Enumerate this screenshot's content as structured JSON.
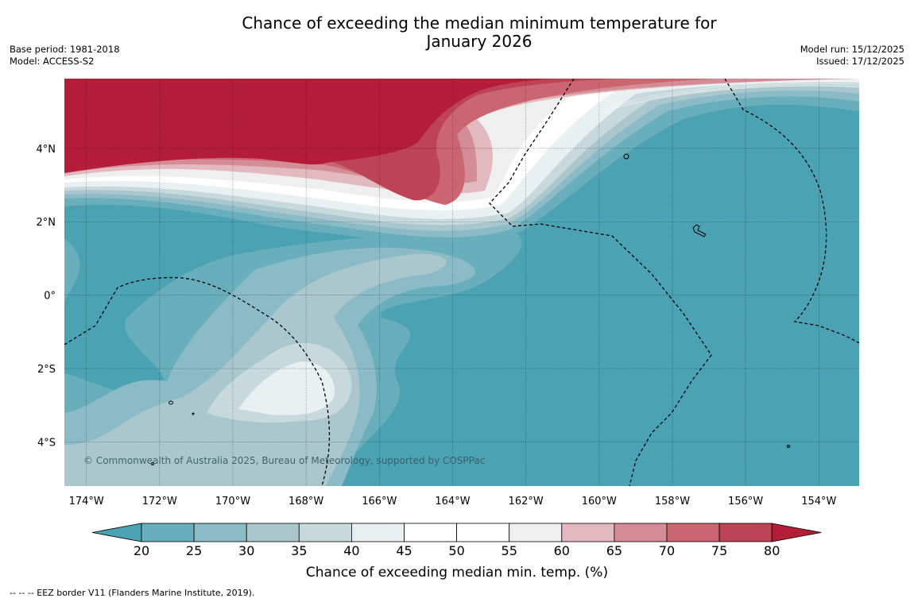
{
  "title": {
    "line1": "Chance of exceeding the median minimum temperature for",
    "line2": "January 2026"
  },
  "meta_left": {
    "base_period": "Base period: 1981-2018",
    "model": "Model: ACCESS-S2"
  },
  "meta_right": {
    "model_run": "Model run: 15/12/2025",
    "issued": "Issued: 17/12/2025"
  },
  "chart_data": {
    "type": "heatmap",
    "subject": "Chance of exceeding median minimum temperature (%)",
    "lon_range": [
      -174.6,
      -152.9
    ],
    "lat_range": [
      -5.2,
      5.9
    ],
    "lon_ticks": [
      "174°W",
      "172°W",
      "170°W",
      "168°W",
      "166°W",
      "164°W",
      "162°W",
      "160°W",
      "158°W",
      "156°W",
      "154°W"
    ],
    "lat_ticks": [
      "4°N",
      "2°N",
      "0°",
      "2°S",
      "4°S"
    ],
    "grid": true
  },
  "colorbar": {
    "label": "Chance of exceeding median min. temp. (%)",
    "ticks": [
      "20",
      "25",
      "30",
      "35",
      "40",
      "45",
      "50",
      "55",
      "60",
      "65",
      "70",
      "75",
      "80"
    ],
    "colors": [
      "#4aa2b2",
      "#69aebb",
      "#8bbbc6",
      "#a9c7cd",
      "#c8d9dc",
      "#e9f0f1",
      "#ffffff",
      "#ffffff",
      "#efefef",
      "#e2b9be",
      "#d48d96",
      "#c9666f",
      "#bd4455",
      "#b31d38"
    ]
  },
  "copyright": "© Commonwealth of Australia 2025, Bureau of Meteorology, supported by COSPPac",
  "footer": "--  --  -- EEZ border V11 (Flanders Marine Institute, 2019)."
}
